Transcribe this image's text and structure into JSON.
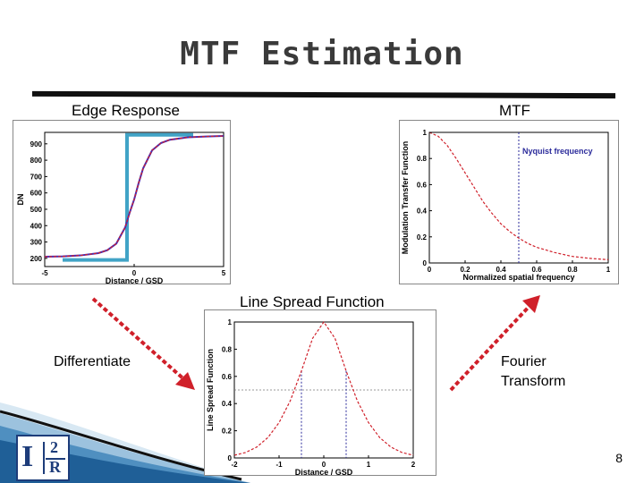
{
  "slide": {
    "title": "MTF Estimation",
    "page_number": "8",
    "labels": {
      "edge_response": "Edge Response",
      "mtf": "MTF",
      "lsf": "Line Spread Function",
      "differentiate": "Differentiate",
      "fourier": "Fourier\nTransform"
    },
    "logo": {
      "letter_i": "I",
      "digit": "2",
      "letter_r": "R"
    },
    "colors": {
      "curve": "#d0202a",
      "edge_fit": "#4b2bb0",
      "step": "#41a3c6",
      "arrow": "#d0202a",
      "nyquist": "#2b2b9b",
      "wave": "#1f6fa8"
    }
  },
  "chart_data": [
    {
      "type": "line",
      "title": "Edge Response",
      "xlabel": "Distance / GSD",
      "ylabel": "DN",
      "xlim": [
        -5,
        5
      ],
      "ylim": [
        150,
        970
      ],
      "x_ticks": [
        "-5",
        "0",
        "5"
      ],
      "y_ticks": [
        "900",
        "800",
        "700",
        "600",
        "500",
        "400",
        "300",
        "200"
      ],
      "x": [
        -5,
        -4,
        -3,
        -2,
        -1.5,
        -1,
        -0.5,
        -0.25,
        0,
        0.25,
        0.5,
        1,
        1.5,
        2,
        3,
        4,
        5
      ],
      "series": [
        {
          "values": [
            210,
            212,
            218,
            232,
            250,
            290,
            390,
            480,
            560,
            660,
            750,
            860,
            905,
            925,
            940,
            945,
            948
          ]
        }
      ],
      "ideal_step": {
        "x": [
          -4,
          -0.4,
          -0.4,
          3.3
        ],
        "values": [
          190,
          190,
          955,
          955
        ]
      }
    },
    {
      "type": "line",
      "title": "MTF",
      "xlabel": "Normalized spatial frequency",
      "ylabel": "Modulation Transfer Function",
      "xlim": [
        0,
        1
      ],
      "ylim": [
        0,
        1
      ],
      "x_ticks": [
        "0",
        "0.2",
        "0.4",
        "0.6",
        "0.8",
        "1"
      ],
      "y_ticks": [
        "0",
        "0.2",
        "0.4",
        "0.6",
        "0.8",
        "1"
      ],
      "x": [
        0,
        0.05,
        0.1,
        0.15,
        0.2,
        0.25,
        0.3,
        0.35,
        0.4,
        0.45,
        0.5,
        0.55,
        0.6,
        0.7,
        0.8,
        0.9,
        1.0
      ],
      "series": [
        {
          "values": [
            1.0,
            0.97,
            0.9,
            0.8,
            0.69,
            0.58,
            0.47,
            0.38,
            0.3,
            0.24,
            0.19,
            0.15,
            0.12,
            0.08,
            0.05,
            0.035,
            0.025
          ]
        }
      ],
      "annotation": {
        "text": "Nyquist frequency",
        "x": 0.5
      }
    },
    {
      "type": "line",
      "title": "Line Spread Function",
      "xlabel": "Distance / GSD",
      "ylabel": "Line Spread Function",
      "xlim": [
        -2,
        2
      ],
      "ylim": [
        0,
        1
      ],
      "x_ticks": [
        "-2",
        "-1",
        "0",
        "1",
        "2"
      ],
      "y_ticks": [
        "0",
        "0.2",
        "0.4",
        "0.6",
        "0.8",
        "1"
      ],
      "x": [
        -2,
        -1.75,
        -1.5,
        -1.25,
        -1,
        -0.75,
        -0.5,
        -0.25,
        0,
        0.25,
        0.5,
        0.75,
        1,
        1.25,
        1.5,
        1.75,
        2
      ],
      "series": [
        {
          "values": [
            0.02,
            0.04,
            0.08,
            0.15,
            0.26,
            0.42,
            0.64,
            0.88,
            1.0,
            0.88,
            0.64,
            0.42,
            0.26,
            0.15,
            0.08,
            0.04,
            0.02
          ]
        }
      ],
      "markers": [
        -0.5,
        0.5
      ],
      "reference_line": 0.5
    }
  ]
}
